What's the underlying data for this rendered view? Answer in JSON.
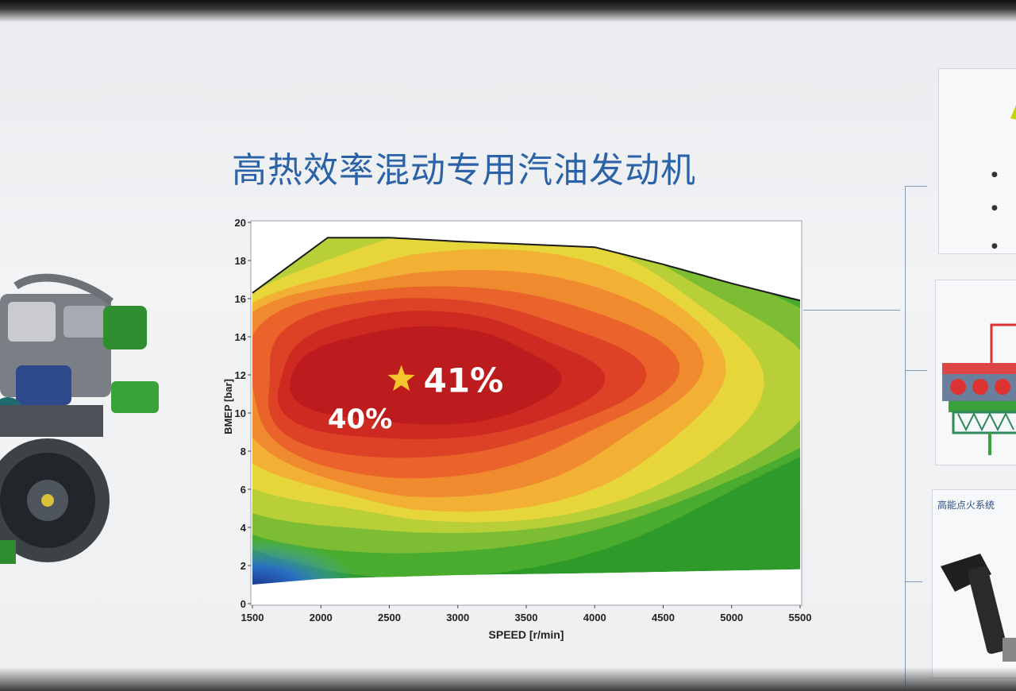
{
  "page": {
    "title": "高热效率混动专用汽油发动机"
  },
  "side_panels": {
    "ignition_label": "高能点火系统"
  },
  "chart_data": {
    "type": "heatmap",
    "xlabel": "SPEED [r/min]",
    "ylabel": "BMEP [bar]",
    "xlim": [
      1500,
      5500
    ],
    "ylim": [
      0,
      20
    ],
    "x_ticks": [
      1500,
      2000,
      2500,
      3000,
      3500,
      4000,
      4500,
      5000,
      5500
    ],
    "y_ticks": [
      0,
      2,
      4,
      6,
      8,
      10,
      12,
      14,
      16,
      18,
      20
    ],
    "envelope_upper": [
      {
        "x": 1500,
        "y": 16.3
      },
      {
        "x": 2050,
        "y": 19.2
      },
      {
        "x": 2500,
        "y": 19.2
      },
      {
        "x": 3000,
        "y": 19.0
      },
      {
        "x": 4000,
        "y": 18.7
      },
      {
        "x": 4500,
        "y": 17.8
      },
      {
        "x": 5000,
        "y": 16.8
      },
      {
        "x": 5500,
        "y": 15.9
      }
    ],
    "envelope_lower": [
      {
        "x": 1500,
        "y": 1.0
      },
      {
        "x": 2000,
        "y": 1.3
      },
      {
        "x": 3000,
        "y": 1.5
      },
      {
        "x": 4000,
        "y": 1.6
      },
      {
        "x": 5500,
        "y": 1.8
      }
    ],
    "peak": {
      "x": 2600,
      "y": 11.6
    },
    "annotations": [
      {
        "text": "41%",
        "x": 2750,
        "y": 11.6,
        "marker": "star"
      },
      {
        "text": "40%",
        "x": 2050,
        "y": 9.7
      }
    ],
    "colors": [
      "#2e9a2a",
      "#4aac2e",
      "#7dbd33",
      "#b8cf38",
      "#e6d63a",
      "#f2b134",
      "#ef8a2e",
      "#e9632a",
      "#de4226",
      "#cf2a22",
      "#bd1c1e"
    ],
    "low_corner_colors": [
      "#1a2f8c",
      "#2a6fc0",
      "#45b0c8"
    ]
  }
}
